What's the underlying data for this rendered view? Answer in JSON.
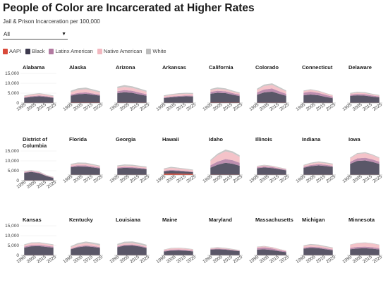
{
  "title": "People of Color are Incarcerated at Higher Rates",
  "subtitle": "Jail & Prison Incarceration per 100,000",
  "filter": {
    "selected": "All"
  },
  "colors": {
    "AAPI": "#d94a3a",
    "Black": "#3d3a4e",
    "Latinx American": "#b27aa1",
    "Native American": "#f2b8c0",
    "White": "#bdbdbd"
  },
  "legend": [
    "AAPI",
    "Black",
    "Latinx American",
    "Native American",
    "White"
  ],
  "chart_data": {
    "type": "area",
    "x_ticks": [
      "1995",
      "2005",
      "2015",
      "2025"
    ],
    "y_ticks": [
      "15,000",
      "10,000",
      "5,000",
      "0"
    ],
    "xlim": [
      1990,
      2025
    ],
    "ylim": [
      0,
      15000
    ],
    "series_names": [
      "AAPI",
      "Black",
      "Latinx American",
      "Native American",
      "White"
    ],
    "states": [
      {
        "name": "Alabama",
        "values": {
          "Black": [
            2500,
            3000,
            3300,
            3000,
            2500
          ],
          "Latinx American": [
            300,
            350,
            400,
            350,
            300
          ],
          "Native American": [
            600,
            700,
            800,
            700,
            600
          ],
          "White": [
            300,
            350,
            350,
            300,
            300
          ],
          "AAPI": [
            100,
            100,
            100,
            100,
            100
          ]
        }
      },
      {
        "name": "Alaska",
        "values": {
          "Black": [
            3500,
            4200,
            4500,
            4000,
            3500
          ],
          "Latinx American": [
            600,
            700,
            700,
            600,
            500
          ],
          "Native American": [
            1200,
            1500,
            1600,
            1400,
            1200
          ],
          "White": [
            700,
            800,
            800,
            700,
            600
          ],
          "AAPI": [
            200,
            200,
            200,
            200,
            200
          ]
        }
      },
      {
        "name": "Arizona",
        "values": {
          "Black": [
            4800,
            5300,
            5000,
            4200,
            3500
          ],
          "Latinx American": [
            1000,
            1100,
            1000,
            900,
            800
          ],
          "Native American": [
            1500,
            1600,
            1500,
            1400,
            1200
          ],
          "White": [
            800,
            900,
            800,
            700,
            600
          ],
          "AAPI": [
            150,
            150,
            150,
            150,
            150
          ]
        }
      },
      {
        "name": "Arkansas",
        "values": {
          "Black": [
            2400,
            2800,
            3100,
            3300,
            3200
          ],
          "Latinx American": [
            300,
            350,
            400,
            400,
            400
          ],
          "Native American": [
            700,
            800,
            900,
            900,
            900
          ],
          "White": [
            400,
            450,
            500,
            500,
            500
          ],
          "AAPI": [
            100,
            100,
            100,
            100,
            100
          ]
        }
      },
      {
        "name": "California",
        "values": {
          "Black": [
            4500,
            5000,
            4800,
            4000,
            3300
          ],
          "Latinx American": [
            900,
            1000,
            900,
            800,
            700
          ],
          "Native American": [
            900,
            1000,
            900,
            800,
            700
          ],
          "White": [
            600,
            700,
            600,
            500,
            400
          ],
          "AAPI": [
            200,
            200,
            200,
            200,
            200
          ]
        }
      },
      {
        "name": "Colorado",
        "values": {
          "Black": [
            4000,
            5200,
            5600,
            4500,
            3500
          ],
          "Latinx American": [
            1200,
            1500,
            1600,
            1300,
            1000
          ],
          "Native American": [
            1300,
            1700,
            1800,
            1500,
            1200
          ],
          "White": [
            600,
            800,
            800,
            700,
            500
          ],
          "AAPI": [
            150,
            150,
            150,
            150,
            150
          ]
        }
      },
      {
        "name": "Connecticut",
        "values": {
          "Black": [
            3800,
            4200,
            3800,
            3000,
            2300
          ],
          "Latinx American": [
            1300,
            1400,
            1200,
            1000,
            800
          ],
          "Native American": [
            800,
            900,
            800,
            700,
            600
          ],
          "White": [
            300,
            350,
            300,
            250,
            200
          ],
          "AAPI": [
            100,
            100,
            100,
            100,
            100
          ]
        }
      },
      {
        "name": "Delaware",
        "values": {
          "Black": [
            3500,
            3800,
            3600,
            3100,
            2700
          ],
          "Latinx American": [
            600,
            700,
            700,
            600,
            500
          ],
          "Native American": [
            500,
            600,
            600,
            500,
            400
          ],
          "White": [
            400,
            450,
            450,
            400,
            350
          ],
          "AAPI": [
            100,
            100,
            100,
            100,
            100
          ]
        }
      },
      {
        "name": "District of Columbia",
        "values": {
          "Black": [
            3800,
            4300,
            3600,
            2200,
            1200
          ],
          "Latinx American": [
            300,
            300,
            300,
            200,
            200
          ],
          "Native American": [
            300,
            300,
            300,
            200,
            200
          ],
          "White": [
            300,
            300,
            300,
            200,
            200
          ],
          "AAPI": [
            100,
            100,
            100,
            100,
            100
          ]
        }
      },
      {
        "name": "Florida",
        "values": {
          "Black": [
            3800,
            4200,
            4100,
            3700,
            3200
          ],
          "Latinx American": [
            500,
            600,
            600,
            500,
            400
          ],
          "Native American": [
            700,
            800,
            800,
            700,
            600
          ],
          "White": [
            500,
            600,
            600,
            500,
            450
          ],
          "AAPI": [
            100,
            100,
            100,
            100,
            100
          ]
        }
      },
      {
        "name": "Georgia",
        "values": {
          "Black": [
            3200,
            3500,
            3400,
            3100,
            2800
          ],
          "Latinx American": [
            400,
            450,
            450,
            400,
            350
          ],
          "Native American": [
            600,
            700,
            700,
            600,
            550
          ],
          "White": [
            500,
            550,
            550,
            500,
            450
          ],
          "AAPI": [
            100,
            100,
            100,
            100,
            100
          ]
        }
      },
      {
        "name": "Hawaii",
        "values": {
          "Black": [
            1200,
            1500,
            1300,
            1100,
            900
          ],
          "Latinx American": [
            300,
            400,
            350,
            300,
            250
          ],
          "Native American": [
            800,
            1000,
            900,
            800,
            700
          ],
          "White": [
            400,
            500,
            450,
            400,
            350
          ],
          "AAPI": [
            600,
            700,
            650,
            600,
            500
          ]
        }
      },
      {
        "name": "Idaho",
        "values": {
          "Black": [
            3500,
            5000,
            6000,
            5500,
            4500
          ],
          "Latinx American": [
            1200,
            1600,
            1900,
            1800,
            1500
          ],
          "Native American": [
            2200,
            3200,
            3900,
            3600,
            3000
          ],
          "White": [
            600,
            800,
            900,
            900,
            800
          ],
          "AAPI": [
            150,
            150,
            150,
            150,
            150
          ]
        }
      },
      {
        "name": "Illinois",
        "values": {
          "Black": [
            3300,
            3700,
            3400,
            2800,
            2200
          ],
          "Latinx American": [
            500,
            550,
            500,
            400,
            350
          ],
          "Native American": [
            400,
            450,
            400,
            350,
            300
          ],
          "White": [
            300,
            350,
            300,
            250,
            200
          ],
          "AAPI": [
            100,
            100,
            100,
            100,
            100
          ]
        }
      },
      {
        "name": "Indiana",
        "values": {
          "Black": [
            3500,
            4300,
            4700,
            4400,
            3900
          ],
          "Latinx American": [
            500,
            600,
            700,
            650,
            600
          ],
          "Native American": [
            600,
            700,
            800,
            750,
            700
          ],
          "White": [
            400,
            500,
            550,
            500,
            450
          ],
          "AAPI": [
            100,
            100,
            100,
            100,
            100
          ]
        }
      },
      {
        "name": "Iowa",
        "values": {
          "Black": [
            5500,
            7000,
            7200,
            6500,
            5500
          ],
          "Latinx American": [
            1000,
            1300,
            1400,
            1300,
            1100
          ],
          "Native American": [
            1800,
            2200,
            2300,
            2100,
            1800
          ],
          "White": [
            400,
            450,
            500,
            450,
            400
          ],
          "AAPI": [
            100,
            100,
            100,
            100,
            100
          ]
        }
      },
      {
        "name": "Kansas",
        "values": {
          "Black": [
            3800,
            4500,
            4600,
            4200,
            3800
          ],
          "Latinx American": [
            500,
            600,
            600,
            550,
            500
          ],
          "Native American": [
            800,
            900,
            900,
            850,
            800
          ],
          "White": [
            400,
            450,
            450,
            400,
            400
          ],
          "AAPI": [
            100,
            100,
            100,
            100,
            100
          ]
        }
      },
      {
        "name": "Kentucky",
        "values": {
          "Black": [
            3000,
            4000,
            4500,
            4200,
            3700
          ],
          "Latinx American": [
            300,
            400,
            500,
            450,
            400
          ],
          "Native American": [
            800,
            1000,
            1100,
            1000,
            900
          ],
          "White": [
            500,
            700,
            800,
            750,
            700
          ],
          "AAPI": [
            100,
            100,
            100,
            100,
            100
          ]
        }
      },
      {
        "name": "Louisiana",
        "values": {
          "Black": [
            4000,
            4800,
            4900,
            4400,
            3600
          ],
          "Latinx American": [
            400,
            500,
            500,
            450,
            400
          ],
          "Native American": [
            600,
            700,
            700,
            650,
            600
          ],
          "White": [
            700,
            800,
            850,
            800,
            700
          ],
          "AAPI": [
            100,
            100,
            100,
            100,
            100
          ]
        }
      },
      {
        "name": "Maine",
        "values": {
          "Black": [
            1800,
            2300,
            2400,
            2200,
            1900
          ],
          "Latinx American": [
            400,
            500,
            500,
            450,
            400
          ],
          "Native American": [
            500,
            600,
            650,
            600,
            550
          ],
          "White": [
            200,
            250,
            250,
            250,
            200
          ],
          "AAPI": [
            100,
            100,
            100,
            100,
            100
          ]
        }
      },
      {
        "name": "Maryland",
        "values": {
          "Black": [
            2800,
            3000,
            2800,
            2400,
            2000
          ],
          "Latinx American": [
            300,
            350,
            300,
            250,
            200
          ],
          "Native American": [
            300,
            350,
            300,
            250,
            200
          ],
          "White": [
            300,
            350,
            300,
            250,
            200
          ],
          "AAPI": [
            100,
            100,
            100,
            100,
            100
          ]
        }
      },
      {
        "name": "Massachusetts",
        "values": {
          "Black": [
            2800,
            3000,
            2600,
            2000,
            1500
          ],
          "Latinx American": [
            800,
            900,
            800,
            600,
            450
          ],
          "Native American": [
            500,
            550,
            500,
            400,
            300
          ],
          "White": [
            200,
            220,
            200,
            150,
            120
          ],
          "AAPI": [
            100,
            100,
            100,
            100,
            100
          ]
        }
      },
      {
        "name": "Michigan",
        "values": {
          "Black": [
            3300,
            3700,
            3500,
            3000,
            2500
          ],
          "Latinx American": [
            500,
            600,
            550,
            450,
            400
          ],
          "Native American": [
            800,
            900,
            850,
            750,
            650
          ],
          "White": [
            400,
            450,
            450,
            400,
            350
          ],
          "AAPI": [
            100,
            100,
            100,
            100,
            100
          ]
        }
      },
      {
        "name": "Minnesota",
        "values": {
          "Black": [
            3000,
            3400,
            3500,
            3300,
            2900
          ],
          "Latinx American": [
            700,
            800,
            800,
            750,
            650
          ],
          "Native American": [
            1500,
            1800,
            1900,
            1800,
            1600
          ],
          "White": [
            200,
            250,
            250,
            250,
            200
          ],
          "AAPI": [
            100,
            100,
            100,
            100,
            100
          ]
        }
      }
    ]
  }
}
